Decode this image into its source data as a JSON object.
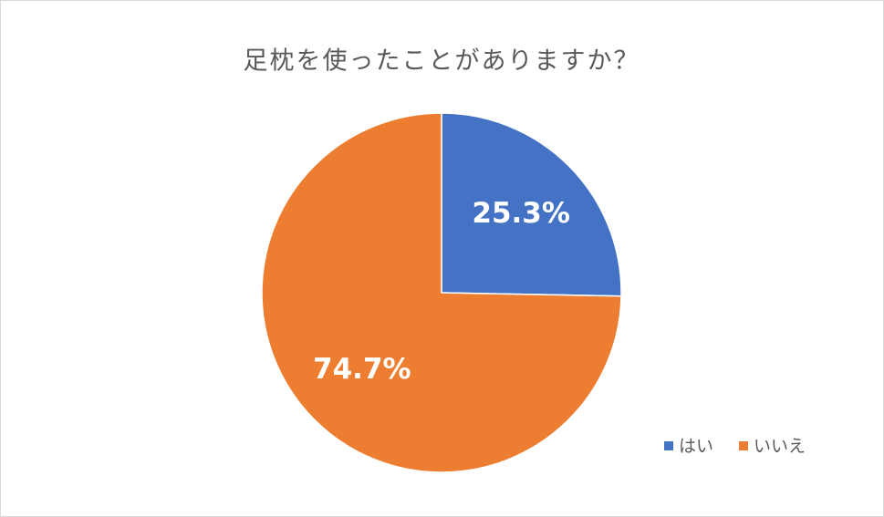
{
  "chart_data": {
    "type": "pie",
    "title": "足枕を使ったことがありますか？",
    "categories": [
      "はい",
      "いいえ"
    ],
    "values": [
      25.3,
      74.7
    ],
    "value_labels": [
      "25.3%",
      "74.7%"
    ],
    "colors": [
      "#4472c4",
      "#ed7d31"
    ],
    "legend": "bottom-right"
  }
}
